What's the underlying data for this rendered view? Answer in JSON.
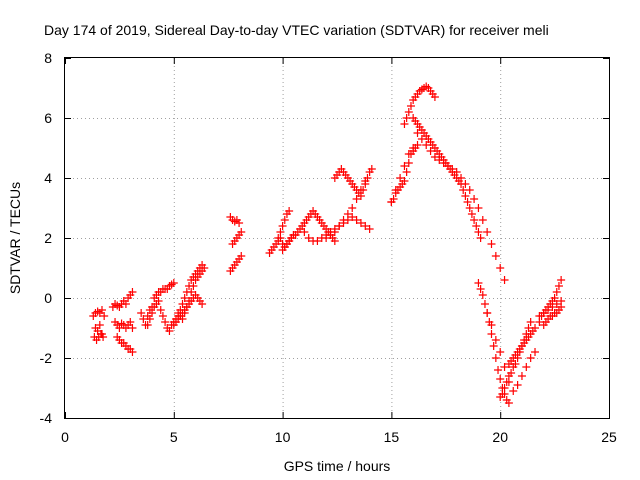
{
  "chart_data": {
    "type": "scatter",
    "title": "Day 174 of 2019, Sidereal Day-to-day VTEC variation (SDTVAR) for receiver meli",
    "xlabel": "GPS time / hours",
    "ylabel": "SDTVAR / TECUs",
    "xlim": [
      0,
      25
    ],
    "ylim": [
      -4,
      8
    ],
    "xticks": [
      "0",
      "5",
      "10",
      "15",
      "20",
      "25"
    ],
    "yticks": [
      "-4",
      "-2",
      "0",
      "2",
      "4",
      "6",
      "8"
    ],
    "grid": true,
    "marker": "+",
    "color": "#ff0000",
    "series": [
      {
        "name": "SDTVAR",
        "x": [
          1.3,
          1.4,
          1.5,
          1.6,
          1.7,
          1.8,
          1.4,
          1.5,
          1.6,
          1.7,
          1.35,
          1.45,
          1.55,
          1.65,
          1.75,
          2.2,
          2.3,
          2.4,
          2.5,
          2.6,
          2.7,
          2.8,
          2.9,
          3.0,
          3.1,
          2.3,
          2.4,
          2.5,
          2.6,
          2.7,
          2.8,
          2.9,
          3.0,
          3.1,
          2.4,
          2.5,
          2.6,
          2.7,
          2.8,
          2.9,
          3.0,
          3.1,
          3.5,
          3.6,
          3.7,
          3.8,
          3.9,
          4.0,
          4.1,
          4.2,
          4.3,
          4.4,
          4.5,
          4.6,
          4.7,
          4.8,
          4.9,
          5.0,
          3.8,
          3.9,
          4.0,
          4.1,
          4.2,
          4.3,
          4.4,
          4.5,
          4.6,
          4.7,
          4.8,
          4.9,
          5.0,
          5.1,
          5.2,
          5.3,
          5.4,
          5.5,
          5.6,
          5.7,
          5.8,
          5.9,
          6.0,
          6.1,
          6.2,
          6.3,
          5.0,
          5.1,
          5.2,
          5.3,
          5.4,
          5.5,
          5.6,
          5.7,
          5.8,
          5.9,
          6.0,
          6.1,
          6.2,
          6.3,
          5.2,
          5.3,
          5.4,
          5.5,
          5.6,
          5.7,
          5.8,
          5.9,
          6.0,
          6.1,
          6.2,
          6.3,
          6.4,
          7.6,
          7.7,
          7.8,
          7.9,
          8.0,
          7.7,
          7.8,
          7.9,
          8.0,
          8.1,
          7.6,
          7.7,
          7.8,
          7.9,
          8.0,
          8.1,
          9.4,
          9.5,
          9.6,
          9.7,
          9.8,
          9.9,
          10.0,
          10.1,
          10.2,
          10.3,
          10.4,
          10.5,
          9.8,
          9.9,
          10.0,
          10.1,
          10.2,
          10.3,
          10.0,
          10.1,
          10.2,
          10.3,
          10.4,
          10.5,
          10.6,
          10.7,
          10.8,
          10.9,
          11.0,
          11.1,
          11.2,
          11.3,
          11.4,
          11.5,
          11.6,
          11.7,
          11.8,
          11.9,
          12.0,
          12.1,
          12.2,
          12.3,
          12.4,
          11.0,
          11.2,
          11.4,
          11.6,
          11.8,
          12.0,
          12.2,
          12.4,
          12.6,
          12.8,
          13.0,
          13.2,
          13.4,
          13.6,
          13.8,
          14.0,
          12.0,
          12.2,
          12.4,
          12.6,
          12.8,
          13.0,
          13.2,
          13.4,
          13.6,
          13.8,
          12.4,
          12.5,
          12.6,
          12.7,
          12.8,
          12.9,
          13.0,
          13.1,
          13.2,
          13.3,
          13.4,
          13.5,
          13.6,
          13.7,
          13.8,
          13.9,
          14.0,
          14.1,
          15.0,
          15.1,
          15.2,
          15.3,
          15.4,
          15.5,
          15.6,
          15.7,
          15.8,
          15.9,
          16.0,
          16.1,
          15.0,
          15.2,
          15.4,
          15.6,
          15.8,
          16.0,
          16.2,
          15.6,
          15.7,
          15.8,
          15.9,
          16.0,
          16.1,
          16.2,
          16.3,
          16.4,
          16.5,
          16.6,
          16.7,
          16.8,
          16.9,
          17.0,
          16.0,
          16.1,
          16.2,
          16.3,
          16.4,
          16.5,
          16.6,
          16.7,
          16.8,
          16.9,
          17.0,
          17.1,
          17.2,
          17.3,
          17.4,
          17.5,
          17.6,
          17.7,
          17.8,
          17.9,
          18.0,
          18.1,
          18.2,
          18.3,
          18.4,
          18.5,
          18.6,
          18.7,
          18.8,
          18.9,
          19.0,
          19.1,
          16.2,
          16.4,
          16.6,
          16.8,
          17.0,
          17.2,
          17.4,
          17.6,
          17.8,
          18.0,
          18.2,
          18.4,
          18.6,
          18.8,
          19.0,
          19.2,
          19.4,
          19.6,
          19.8,
          20.0,
          20.2,
          19.0,
          19.1,
          19.2,
          19.3,
          19.4,
          19.5,
          19.6,
          19.7,
          19.8,
          19.9,
          20.0,
          20.1,
          20.2,
          20.3,
          20.4,
          19.4,
          19.6,
          19.8,
          20.0,
          20.2,
          20.4,
          20.6,
          20.8,
          21.0,
          21.2,
          21.4,
          21.6,
          20.0,
          20.1,
          20.2,
          20.3,
          20.4,
          20.5,
          20.6,
          20.7,
          20.8,
          20.9,
          21.0,
          21.1,
          21.2,
          21.3,
          21.4,
          20.4,
          20.5,
          20.6,
          20.7,
          20.8,
          20.9,
          21.0,
          21.1,
          21.2,
          21.3,
          21.4,
          21.5,
          21.6,
          21.8,
          21.9,
          22.0,
          22.1,
          22.2,
          22.3,
          22.4,
          22.5,
          22.6,
          22.7,
          22.8,
          21.8,
          22.0,
          22.2,
          22.4,
          22.6,
          22.8,
          22.0,
          22.1,
          22.2,
          22.3,
          22.4,
          22.5,
          22.6,
          22.7,
          22.8
        ],
        "y": [
          -0.6,
          -0.5,
          -0.45,
          -0.5,
          -0.4,
          -0.6,
          -1.0,
          -1.1,
          -0.9,
          -1.2,
          -1.3,
          -1.4,
          -1.3,
          -1.2,
          -1.3,
          -0.3,
          -0.2,
          -0.25,
          -0.3,
          -0.2,
          -0.1,
          -0.2,
          0.0,
          0.1,
          0.2,
          -0.8,
          -0.9,
          -1.0,
          -0.85,
          -0.9,
          -1.0,
          -0.9,
          -0.8,
          -1.0,
          -1.3,
          -1.4,
          -1.5,
          -1.5,
          -1.6,
          -1.7,
          -1.7,
          -1.8,
          -0.5,
          -0.7,
          -0.9,
          -0.6,
          -0.4,
          -0.3,
          0.0,
          0.1,
          0.2,
          0.2,
          0.3,
          0.3,
          0.3,
          0.4,
          0.45,
          0.5,
          -0.9,
          -0.7,
          -0.5,
          -0.3,
          -0.2,
          -0.1,
          -0.4,
          -0.6,
          -0.8,
          -1.0,
          -1.1,
          -0.9,
          -0.8,
          -0.7,
          -0.6,
          -0.4,
          -0.2,
          0.0,
          0.2,
          0.4,
          0.6,
          0.7,
          0.8,
          0.9,
          1.0,
          1.1,
          -0.9,
          -0.8,
          -0.7,
          -0.6,
          -0.5,
          -0.4,
          -0.3,
          -0.2,
          -0.1,
          0.0,
          0.1,
          0.0,
          -0.1,
          -0.2,
          -0.5,
          -0.6,
          -0.7,
          -0.5,
          -0.3,
          -0.1,
          0.2,
          0.4,
          0.6,
          0.7,
          0.8,
          0.9,
          1.0,
          2.7,
          2.6,
          2.55,
          2.6,
          2.5,
          1.8,
          1.9,
          2.0,
          2.1,
          2.2,
          0.9,
          1.0,
          1.1,
          1.2,
          1.3,
          1.4,
          1.5,
          1.6,
          1.7,
          1.8,
          1.9,
          2.0,
          1.8,
          1.7,
          1.8,
          1.9,
          2.0,
          2.1,
          2.0,
          2.2,
          2.4,
          2.6,
          2.8,
          2.9,
          1.6,
          1.7,
          1.8,
          1.9,
          2.0,
          2.1,
          2.1,
          2.2,
          2.3,
          2.4,
          2.5,
          2.6,
          2.7,
          2.8,
          2.9,
          2.8,
          2.7,
          2.6,
          2.5,
          2.4,
          2.3,
          2.2,
          2.1,
          2.0,
          1.9,
          2.2,
          2.0,
          1.9,
          1.9,
          2.0,
          2.1,
          2.2,
          2.3,
          2.4,
          2.5,
          2.6,
          2.7,
          2.6,
          2.5,
          2.4,
          2.3,
          2.0,
          2.1,
          2.2,
          2.4,
          2.6,
          2.8,
          3.0,
          3.3,
          3.6,
          3.9,
          4.0,
          4.1,
          4.2,
          4.3,
          4.2,
          4.1,
          4.0,
          3.9,
          3.8,
          3.7,
          3.6,
          3.5,
          3.4,
          3.6,
          3.8,
          4.0,
          4.2,
          4.3,
          3.2,
          3.3,
          3.5,
          3.6,
          3.7,
          3.8,
          3.9,
          4.2,
          4.5,
          4.8,
          4.9,
          5.0,
          3.2,
          3.6,
          4.0,
          4.4,
          4.8,
          5.0,
          5.1,
          5.8,
          6.0,
          6.2,
          6.4,
          6.6,
          6.7,
          6.8,
          6.9,
          6.95,
          7.0,
          7.05,
          7.0,
          6.9,
          6.8,
          6.7,
          6.0,
          5.9,
          5.8,
          5.7,
          5.6,
          5.5,
          5.4,
          5.3,
          5.2,
          5.1,
          5.0,
          4.9,
          4.8,
          4.7,
          4.6,
          4.5,
          4.4,
          4.3,
          4.2,
          4.1,
          4.0,
          3.9,
          3.8,
          3.6,
          3.4,
          3.2,
          3.0,
          2.8,
          2.6,
          2.4,
          2.2,
          2.0,
          5.5,
          5.3,
          5.1,
          4.9,
          4.7,
          4.6,
          4.5,
          4.4,
          4.3,
          4.2,
          4.0,
          3.8,
          3.6,
          3.3,
          3.0,
          2.6,
          2.2,
          1.8,
          1.4,
          1.0,
          0.6,
          0.5,
          0.3,
          0.1,
          -0.2,
          -0.5,
          -0.8,
          -1.2,
          -1.6,
          -2.0,
          -2.4,
          -2.7,
          -3.0,
          -3.2,
          -3.4,
          -3.5,
          -0.5,
          -0.9,
          -1.4,
          -1.8,
          -2.3,
          -2.8,
          -3.1,
          -2.9,
          -2.6,
          -2.3,
          -2.0,
          -1.8,
          -3.3,
          -3.2,
          -3.0,
          -2.8,
          -2.6,
          -2.5,
          -2.3,
          -2.2,
          -2.0,
          -1.8,
          -1.6,
          -1.4,
          -1.2,
          -1.0,
          -0.8,
          -2.2,
          -2.1,
          -2.0,
          -1.9,
          -1.8,
          -1.7,
          -1.6,
          -1.5,
          -1.4,
          -1.3,
          -1.2,
          -1.1,
          -1.0,
          -0.8,
          -0.6,
          -0.5,
          -0.4,
          -0.3,
          -0.2,
          -0.1,
          0.0,
          0.2,
          0.4,
          0.6,
          -0.6,
          -0.5,
          -0.4,
          -0.3,
          -0.2,
          -0.1,
          -0.9,
          -0.8,
          -0.7,
          -0.6,
          -0.6,
          -0.5,
          -0.5,
          -0.4,
          -0.3
        ]
      }
    ]
  }
}
